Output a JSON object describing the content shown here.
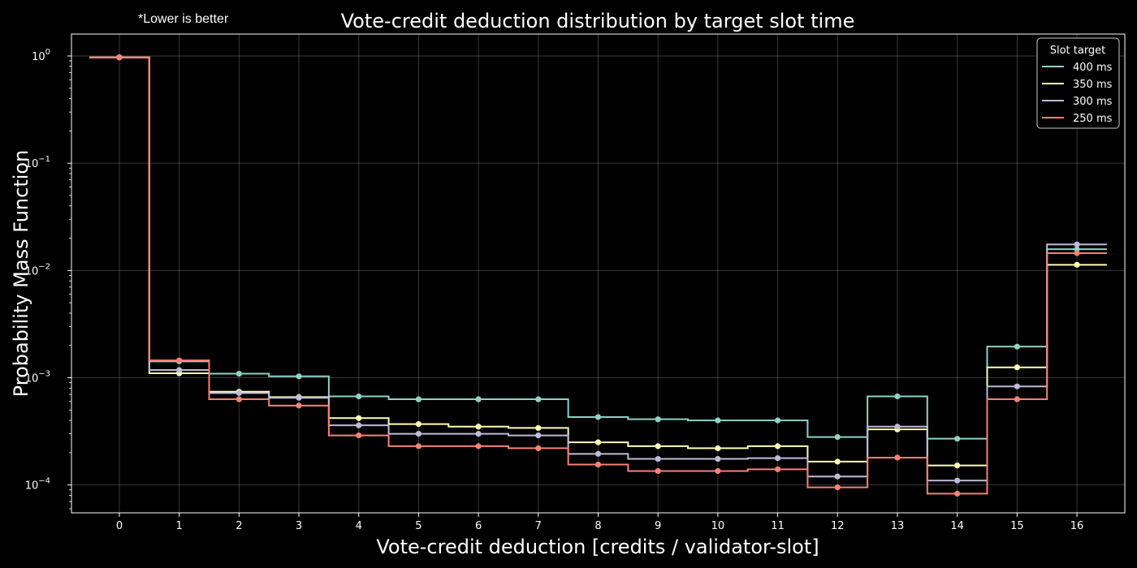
{
  "note": "*Lower is better",
  "chart_data": {
    "type": "line",
    "title": "Vote-credit deduction distribution by target slot time",
    "xlabel": "Vote-credit deduction [credits / validator-slot]",
    "ylabel": "Probability Mass Function",
    "yscale": "log",
    "ylim": [
      5.5e-05,
      1.6
    ],
    "xlim": [
      -0.8,
      16.8
    ],
    "grid": true,
    "step_style": "mid",
    "x": [
      0,
      1,
      2,
      3,
      4,
      5,
      6,
      7,
      8,
      9,
      10,
      11,
      12,
      13,
      14,
      15,
      16
    ],
    "x_tick_labels": [
      "0",
      "1",
      "2",
      "3",
      "4",
      "5",
      "6",
      "7",
      "8",
      "9",
      "10",
      "11",
      "12",
      "13",
      "14",
      "15",
      "16"
    ],
    "y_tick_labels": [
      {
        "value": 1,
        "base": "10",
        "exp": "0"
      },
      {
        "value": 0.1,
        "base": "10",
        "exp": "−1"
      },
      {
        "value": 0.01,
        "base": "10",
        "exp": "−2"
      },
      {
        "value": 0.001,
        "base": "10",
        "exp": "−3"
      },
      {
        "value": 0.0001,
        "base": "10",
        "exp": "−4"
      }
    ],
    "legend": {
      "title": "Slot target",
      "position": "top-right"
    },
    "series": [
      {
        "name": "400 ms",
        "color": "#8dd3c7",
        "values": [
          0.97,
          0.00142,
          0.00109,
          0.00103,
          0.00067,
          0.00063,
          0.00063,
          0.00063,
          0.00043,
          0.00041,
          0.0004,
          0.0004,
          0.00028,
          0.00067,
          0.00027,
          0.00195,
          0.0158
        ]
      },
      {
        "name": "350 ms",
        "color": "#feffb3",
        "values": [
          0.97,
          0.0011,
          0.00074,
          0.00066,
          0.00042,
          0.00037,
          0.00035,
          0.00034,
          0.00025,
          0.00023,
          0.00022,
          0.00023,
          0.000165,
          0.00033,
          0.000152,
          0.00125,
          0.0113
        ]
      },
      {
        "name": "300 ms",
        "color": "#bfbbd9",
        "values": [
          0.97,
          0.00118,
          0.00072,
          0.00065,
          0.00036,
          0.0003,
          0.0003,
          0.00029,
          0.000195,
          0.000175,
          0.000175,
          0.000178,
          0.00012,
          0.00035,
          0.00011,
          0.00083,
          0.0175
        ]
      },
      {
        "name": "250 ms",
        "color": "#fa8174",
        "values": [
          0.97,
          0.00145,
          0.00063,
          0.00055,
          0.00029,
          0.00023,
          0.00023,
          0.00022,
          0.000155,
          0.000135,
          0.000135,
          0.00014,
          9.5e-05,
          0.00018,
          8.3e-05,
          0.00063,
          0.0145
        ]
      }
    ]
  }
}
